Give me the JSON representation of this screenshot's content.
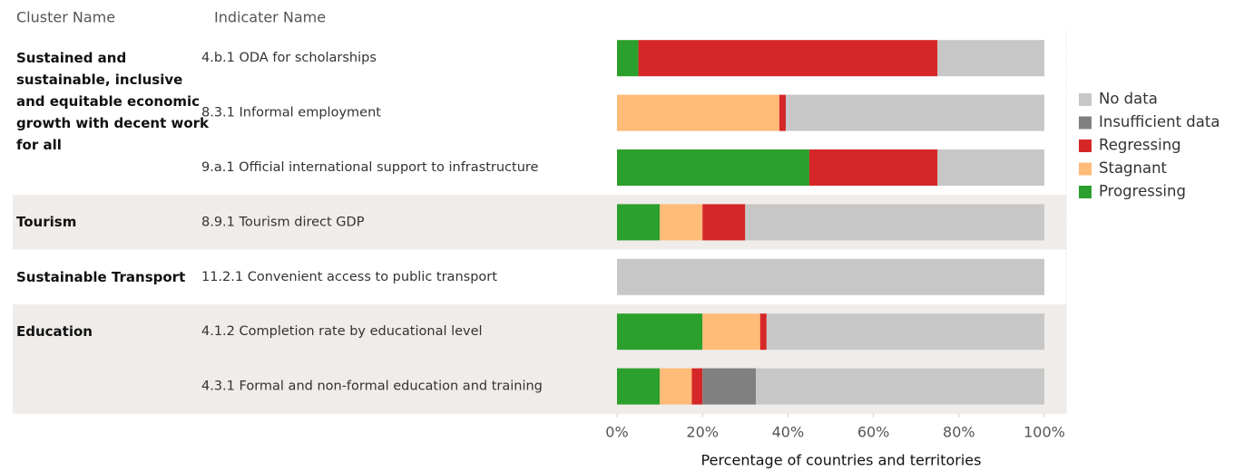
{
  "chart_data": {
    "type": "bar",
    "orientation": "horizontal",
    "stacked": true,
    "column_headers": [
      "Cluster Name",
      "Indicater Name"
    ],
    "clusters": [
      {
        "name": "Sustained and sustainable, inclusive and equitable economic growth with decent work for all",
        "indicators": [
          "4.b.1 ODA for scholarships",
          "8.3.1 Informal employment",
          "9.a.1 Official international support to infrastructure"
        ]
      },
      {
        "name": "Tourism",
        "indicators": [
          "8.9.1 Tourism direct GDP"
        ]
      },
      {
        "name": "Sustainable Transport",
        "indicators": [
          "11.2.1 Convenient access to public transport"
        ]
      },
      {
        "name": "Education",
        "indicators": [
          "4.1.2 Completion rate by educational level",
          "4.3.1 Formal and non-formal education and training"
        ]
      }
    ],
    "series": [
      {
        "name": "No data",
        "color": "#c7c7c7",
        "values": [
          25,
          60.5,
          25,
          70,
          100,
          65,
          67.5
        ]
      },
      {
        "name": "Insufficient data",
        "color": "#808080",
        "values": [
          0,
          0,
          0,
          0,
          0,
          0,
          12.5
        ]
      },
      {
        "name": "Regressing",
        "color": "#d62728",
        "values": [
          70,
          1.5,
          30,
          10,
          0,
          1.5,
          2.5
        ]
      },
      {
        "name": "Stagnant",
        "color": "#ffbb78",
        "values": [
          0,
          38,
          0,
          10,
          0,
          13.5,
          7.5
        ]
      },
      {
        "name": "Progressing",
        "color": "#2ca02c",
        "values": [
          5,
          0,
          45,
          10,
          0,
          20,
          10
        ]
      }
    ],
    "xlim": [
      0,
      100
    ],
    "xticks": [
      {
        "value": 0,
        "label": "0%"
      },
      {
        "value": 20,
        "label": "20%"
      },
      {
        "value": 40,
        "label": "40%"
      },
      {
        "value": 60,
        "label": "60%"
      },
      {
        "value": 80,
        "label": "80%"
      },
      {
        "value": 100,
        "label": "100%"
      }
    ],
    "x_label": "Percentage of countries and territories",
    "legend": "right"
  }
}
